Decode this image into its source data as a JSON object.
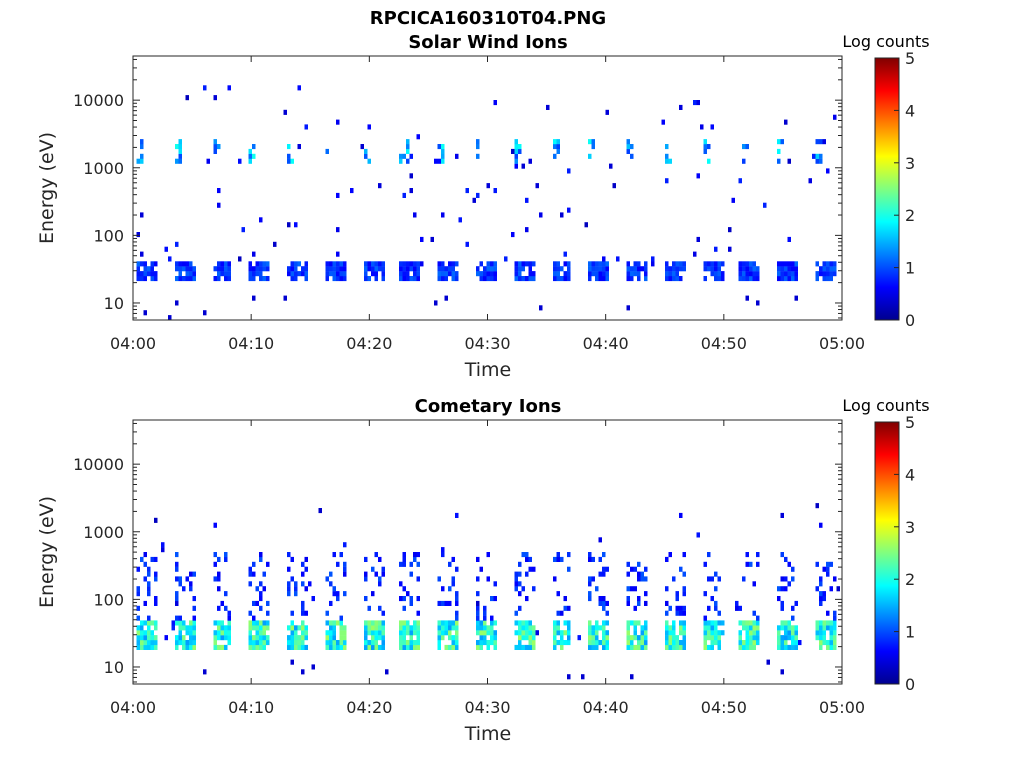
{
  "figure": {
    "title": "RPCICA160310T04.PNG"
  },
  "chart_data": [
    {
      "type": "heatmap",
      "title": "Solar Wind Ions",
      "xlabel": "Time",
      "ylabel": "Energy (eV)",
      "x_ticks": [
        "04:00",
        "04:10",
        "04:20",
        "04:30",
        "04:40",
        "04:50",
        "05:00"
      ],
      "x_range_minutes": [
        0,
        60
      ],
      "y_scale": "log",
      "y_range_eV": [
        5.6,
        45000
      ],
      "y_ticks": [
        {
          "value": 10,
          "label": "10"
        },
        {
          "value": 100,
          "label": "100"
        },
        {
          "value": 1000,
          "label": "1000"
        },
        {
          "value": 10000,
          "label": "10000"
        }
      ],
      "colorbar": {
        "label": "Log counts",
        "range": [
          0,
          5
        ],
        "ticks": [
          "0",
          "1",
          "2",
          "3",
          "4",
          "5"
        ],
        "colormap": "jet"
      },
      "grid": false,
      "features": {
        "low_energy_band_eV": [
          20,
          40
        ],
        "low_energy_band_log_counts": 1.0,
        "solar_wind_peak_eV": [
          1000,
          2500
        ],
        "solar_wind_peak_log_counts": 1.8,
        "scan_period_minutes": 3.2,
        "background": "sparse single counts 20–15000 eV"
      }
    },
    {
      "type": "heatmap",
      "title": "Cometary Ions",
      "xlabel": "Time",
      "ylabel": "Energy (eV)",
      "x_ticks": [
        "04:00",
        "04:10",
        "04:20",
        "04:30",
        "04:40",
        "04:50",
        "05:00"
      ],
      "x_range_minutes": [
        0,
        60
      ],
      "y_scale": "log",
      "y_range_eV": [
        5.6,
        45000
      ],
      "y_ticks": [
        {
          "value": 10,
          "label": "10"
        },
        {
          "value": 100,
          "label": "100"
        },
        {
          "value": 1000,
          "label": "1000"
        },
        {
          "value": 10000,
          "label": "10000"
        }
      ],
      "colorbar": {
        "label": "Log counts",
        "range": [
          0,
          5
        ],
        "ticks": [
          "0",
          "1",
          "2",
          "3",
          "4",
          "5"
        ],
        "colormap": "jet"
      },
      "grid": false,
      "features": {
        "low_energy_band_eV": [
          18,
          45
        ],
        "low_energy_band_log_counts": 2.3,
        "vertical_streaks_eV": [
          45,
          500
        ],
        "streak_log_counts": 0.8,
        "scan_period_minutes": 3.2,
        "background": "sparse single counts up to 2500 eV"
      }
    }
  ]
}
